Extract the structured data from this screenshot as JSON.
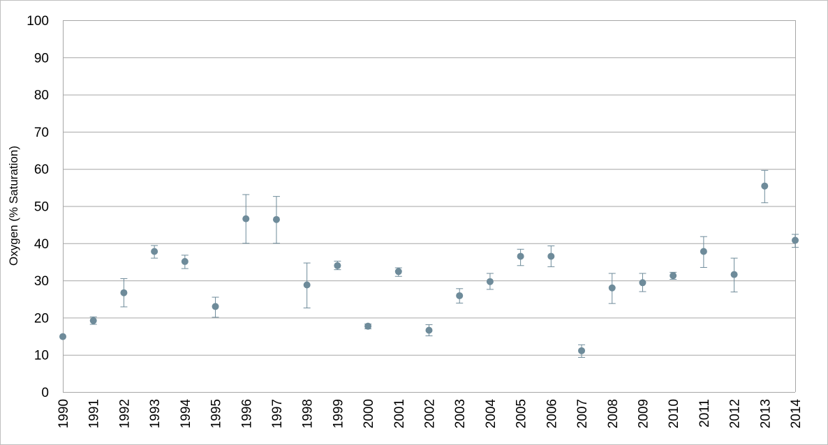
{
  "chart_data": {
    "type": "scatter",
    "title": "",
    "xlabel": "",
    "ylabel": "Oxygen (% Saturation)",
    "ylim": [
      0,
      100
    ],
    "yticks": [
      0,
      10,
      20,
      30,
      40,
      50,
      60,
      70,
      80,
      90,
      100
    ],
    "grid": true,
    "colors": {
      "marker": "#6e8b9a",
      "errorbar": "#6e8b9a",
      "grid": "#a6a6a6",
      "axis": "#a6a6a6"
    },
    "x": [
      "1990",
      "1991",
      "1992",
      "1993",
      "1994",
      "1995",
      "1996",
      "1997",
      "1998",
      "1999",
      "2000",
      "2001",
      "2002",
      "2003",
      "2004",
      "2005",
      "2006",
      "2007",
      "2008",
      "2009",
      "2010",
      "2011",
      "2012",
      "2013",
      "2014"
    ],
    "y": [
      14.9,
      19.2,
      26.7,
      37.8,
      35.1,
      23.0,
      46.6,
      46.4,
      28.8,
      34.0,
      17.7,
      32.4,
      16.6,
      25.9,
      29.7,
      36.5,
      36.5,
      11.1,
      28.0,
      29.4,
      31.3,
      37.8,
      31.6,
      55.4,
      40.8
    ],
    "err_low": [
      14.9,
      18.2,
      22.9,
      36.0,
      33.2,
      20.1,
      40.0,
      40.0,
      22.6,
      32.9,
      17.0,
      31.1,
      15.1,
      23.9,
      27.6,
      34.0,
      33.7,
      9.3,
      23.8,
      27.0,
      30.3,
      33.5,
      26.9,
      50.9,
      38.9
    ],
    "err_high": [
      14.9,
      20.2,
      30.5,
      39.4,
      36.8,
      25.5,
      53.1,
      52.6,
      34.7,
      35.2,
      18.3,
      33.4,
      18.1,
      27.8,
      31.9,
      38.4,
      39.3,
      12.7,
      31.9,
      31.9,
      32.2,
      41.8,
      36.0,
      59.6,
      42.4
    ]
  }
}
